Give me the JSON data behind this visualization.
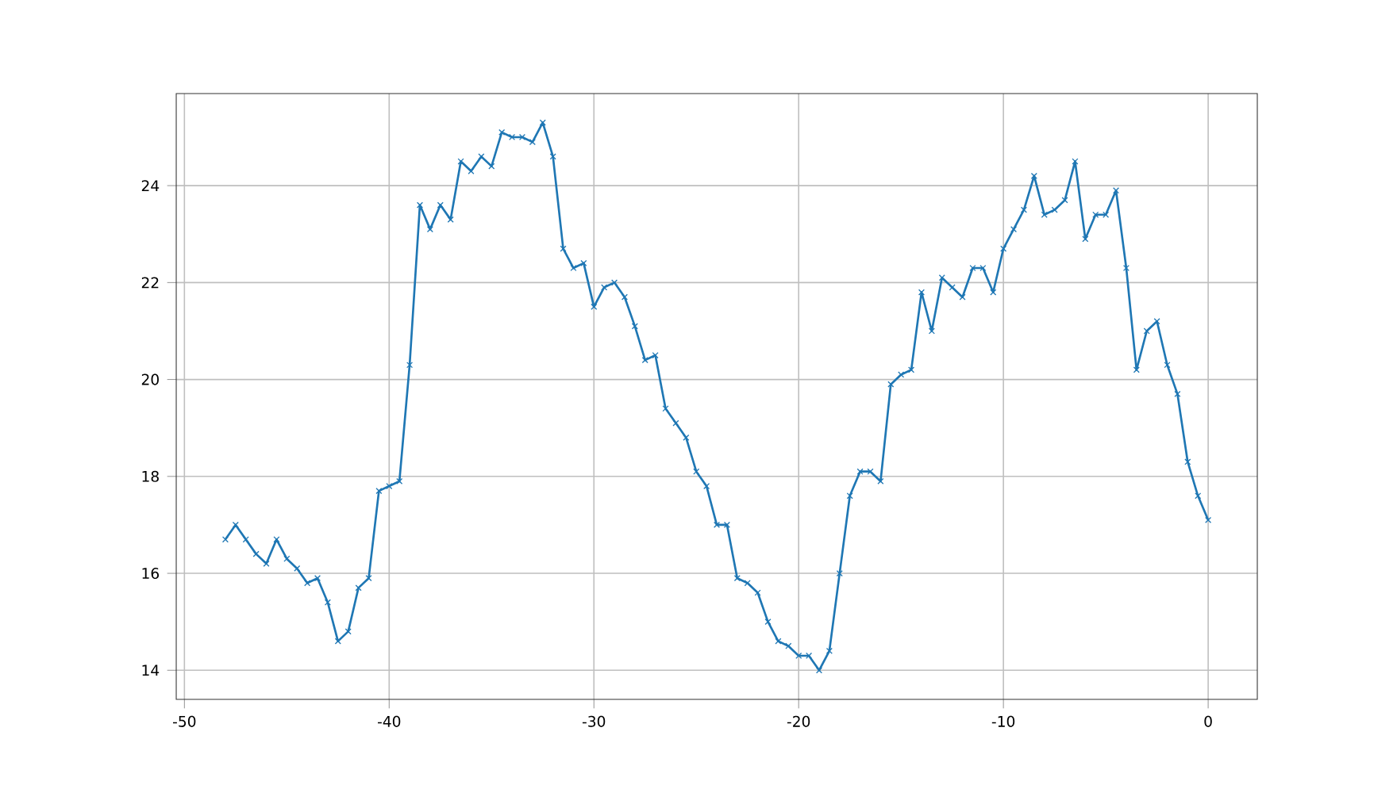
{
  "chart_data": {
    "type": "line",
    "x": [
      -48,
      -47.5,
      -47,
      -46.5,
      -46,
      -45.5,
      -45,
      -44.5,
      -44,
      -43.5,
      -43,
      -42.5,
      -42,
      -41.5,
      -41,
      -40.5,
      -40,
      -39.5,
      -39,
      -38.5,
      -38,
      -37.5,
      -37,
      -36.5,
      -36,
      -35.5,
      -35,
      -34.5,
      -34,
      -33.5,
      -33,
      -32.5,
      -32,
      -31.5,
      -31,
      -30.5,
      -30,
      -29.5,
      -29,
      -28.5,
      -28,
      -27.5,
      -27,
      -26.5,
      -26,
      -25.5,
      -25,
      -24.5,
      -24,
      -23.5,
      -23,
      -22.5,
      -22,
      -21.5,
      -21,
      -20.5,
      -20,
      -19.5,
      -19,
      -18.5,
      -18,
      -17.5,
      -17,
      -16.5,
      -16,
      -15.5,
      -15,
      -14.5,
      -14,
      -13.5,
      -13,
      -12.5,
      -12,
      -11.5,
      -11,
      -10.5,
      -10,
      -9.5,
      -9,
      -8.5,
      -8,
      -7.5,
      -7,
      -6.5,
      -6,
      -5.5,
      -5,
      -4.5,
      -4,
      -3.5,
      -3,
      -2.5,
      -2,
      -1.5,
      -1,
      -0.5,
      0
    ],
    "series": [
      {
        "color": "#1f77b4",
        "values": [
          16.7,
          17.0,
          16.7,
          16.4,
          16.2,
          16.7,
          16.3,
          16.1,
          15.8,
          15.9,
          15.4,
          14.6,
          14.8,
          15.7,
          15.9,
          17.7,
          17.8,
          17.9,
          20.3,
          23.6,
          23.1,
          23.6,
          23.3,
          24.5,
          24.3,
          24.6,
          24.4,
          25.1,
          25.0,
          25.0,
          24.9,
          25.3,
          24.6,
          22.7,
          22.3,
          22.4,
          21.5,
          21.9,
          22.0,
          21.7,
          21.1,
          20.4,
          20.5,
          19.4,
          19.1,
          18.8,
          18.1,
          17.8,
          17.0,
          17.0,
          15.9,
          15.8,
          15.6,
          15.0,
          14.6,
          14.5,
          14.3,
          14.3,
          14.0,
          14.4,
          16.0,
          17.6,
          18.1,
          18.1,
          17.9,
          19.9,
          20.1,
          20.2,
          21.8,
          21.0,
          22.1,
          21.9,
          21.7,
          22.3,
          22.3,
          21.8,
          22.7,
          23.1,
          23.5,
          24.2,
          23.4,
          23.5,
          23.7,
          24.5,
          22.9,
          23.4,
          23.4,
          23.9,
          22.3,
          20.2,
          21.0,
          21.2,
          20.3,
          19.7,
          18.3,
          17.6,
          17.1
        ]
      }
    ],
    "xlim": [
      -50.4,
      2.4
    ],
    "ylim": [
      13.4,
      25.9
    ],
    "xticks": [
      -50,
      -40,
      -30,
      -20,
      -10,
      0
    ],
    "yticks": [
      14,
      16,
      18,
      20,
      22,
      24
    ],
    "grid": true,
    "marker": "cross",
    "line_style": "solid"
  }
}
